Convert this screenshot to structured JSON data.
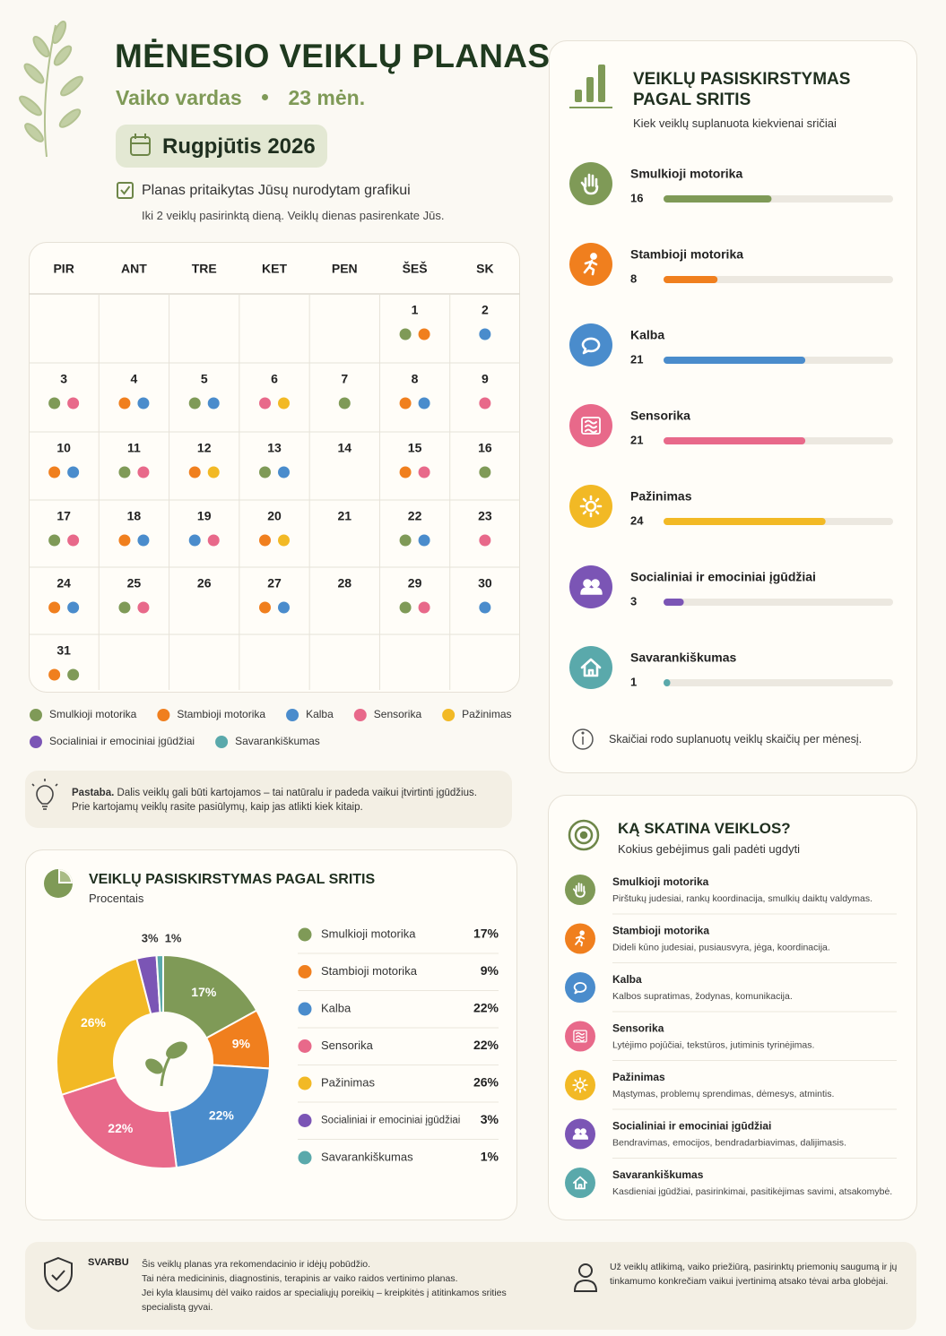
{
  "header": {
    "title": "MĖNESIO VEIKLŲ PLANAS",
    "child": "Vaiko vardas",
    "age": "23 mėn.",
    "month": "Rugpjūtis 2026",
    "schedule_note": "Planas pritaikytas Jūsų nurodytam grafikui",
    "schedule_detail": "Iki 2 veiklų pasirinktą dieną. Veiklų dienas pasirenkate Jūs."
  },
  "calendar": {
    "weekdays": [
      "PIR",
      "ANT",
      "TRE",
      "KET",
      "PEN",
      "ŠEŠ",
      "SK"
    ],
    "weeks": [
      [
        null,
        null,
        null,
        null,
        null,
        {
          "day": 1,
          "activities": [
            0,
            1
          ]
        },
        {
          "day": 2,
          "activities": [
            2
          ]
        }
      ],
      [
        {
          "day": 3,
          "activities": [
            0,
            3
          ]
        },
        {
          "day": 4,
          "activities": [
            1,
            2
          ]
        },
        {
          "day": 5,
          "activities": [
            0,
            2
          ]
        },
        {
          "day": 6,
          "activities": [
            3,
            4
          ]
        },
        {
          "day": 7,
          "activities": [
            0
          ]
        },
        {
          "day": 8,
          "activities": [
            1,
            2
          ]
        },
        {
          "day": 9,
          "activities": [
            3
          ]
        }
      ],
      [
        {
          "day": 10,
          "activities": [
            1,
            2
          ]
        },
        {
          "day": 11,
          "activities": [
            0,
            3
          ]
        },
        {
          "day": 12,
          "activities": [
            1,
            4
          ]
        },
        {
          "day": 13,
          "activities": [
            0,
            2
          ]
        },
        {
          "day": 14,
          "activities": []
        },
        {
          "day": 15,
          "activities": [
            1,
            3
          ]
        },
        {
          "day": 16,
          "activities": [
            0
          ]
        }
      ],
      [
        {
          "day": 17,
          "activities": [
            0,
            3
          ]
        },
        {
          "day": 18,
          "activities": [
            1,
            2
          ]
        },
        {
          "day": 19,
          "activities": [
            2,
            3
          ]
        },
        {
          "day": 20,
          "activities": [
            1,
            4
          ]
        },
        {
          "day": 21,
          "activities": []
        },
        {
          "day": 22,
          "activities": [
            0,
            2
          ]
        },
        {
          "day": 23,
          "activities": [
            3
          ]
        }
      ],
      [
        {
          "day": 24,
          "activities": [
            1,
            2
          ]
        },
        {
          "day": 25,
          "activities": [
            0,
            3
          ]
        },
        {
          "day": 26,
          "activities": []
        },
        {
          "day": 27,
          "activities": [
            1,
            2
          ]
        },
        {
          "day": 28,
          "activities": []
        },
        {
          "day": 29,
          "activities": [
            0,
            3
          ]
        },
        {
          "day": 30,
          "activities": [
            2
          ]
        }
      ],
      [
        {
          "day": 31,
          "activities": [
            1,
            0
          ]
        },
        null,
        null,
        null,
        null,
        null,
        null
      ]
    ]
  },
  "note": {
    "label": "Pastaba.",
    "text": "Dalis veiklų gali būti kartojamos – tai natūralu ir padeda vaikui įtvirtinti įgūdžius. Prie kartojamų veiklų rasite pasiūlymų, kaip jas atlikti kiek kitaip."
  },
  "chart_data": [
    {
      "type": "bar",
      "title": "VEIKLŲ PASISKIRSTYMAS PAGAL SRITIS",
      "subtitle": "Kiek veiklų suplanuota kiekvienai sričiai",
      "categories": [
        "Smulkioji motorika",
        "Stambioji motorika",
        "Kalba",
        "Sensorika",
        "Pažinimas",
        "Socialiniai ir emociniai įgūdžiai",
        "Savarankiškumas"
      ],
      "values": [
        16,
        8,
        21,
        21,
        24,
        3,
        1
      ],
      "colors": [
        "#7f9a57",
        "#f07f1e",
        "#4a8ccc",
        "#e8698a",
        "#f2b925",
        "#7b55b5",
        "#5aa9ab"
      ],
      "xlim": [
        0,
        34
      ],
      "footnote": "Skaičiai rodo suplanuotų veiklų skaičių per mėnesį."
    },
    {
      "type": "pie",
      "donut": true,
      "title": "VEIKLŲ PASISKIRSTYMAS PAGAL SRITIS",
      "subtitle": "Procentais",
      "categories": [
        "Smulkioji motorika",
        "Stambioji motorika",
        "Kalba",
        "Sensorika",
        "Pažinimas",
        "Socialiniai ir emociniai įgūdžiai",
        "Savarankiškumas"
      ],
      "values": [
        17,
        9,
        22,
        22,
        26,
        3,
        1
      ],
      "value_labels": [
        "17%",
        "9%",
        "22%",
        "22%",
        "26%",
        "3%",
        "1%"
      ],
      "colors": [
        "#7f9a57",
        "#f07f1e",
        "#4a8ccc",
        "#e8698a",
        "#f2b925",
        "#7b55b5",
        "#5aa9ab"
      ]
    }
  ],
  "skills": {
    "title": "KĄ SKATINA VEIKLOS?",
    "subtitle": "Kokius gebėjimus gali padėti ugdyti",
    "descriptions": [
      "Pirštukų judesiai, rankų koordinacija, smulkių daiktų valdymas.",
      "Dideli kūno judesiai, pusiausvyra, jėga, koordinacija.",
      "Kalbos supratimas, žodynas, komunikacija.",
      "Lytėjimo pojūčiai, tekstūros, jutiminis tyrinėjimas.",
      "Mąstymas, problemų sprendimas, dėmesys, atmintis.",
      "Bendravimas, emocijos, bendradarbiavimas, dalijimasis.",
      "Kasdieniai įgūdžiai, pasirinkimai, pasitikėjimas savimi, atsakomybė."
    ]
  },
  "footer": {
    "label": "SVARBU",
    "lines": [
      "Šis veiklų planas yra rekomendacinio ir idėjų pobūdžio.",
      "Tai nėra medicininis, diagnostinis, terapinis ar vaiko raidos vertinimo planas.",
      "Jei kyla klausimų dėl vaiko raidos ar specialiųjų poreikių – kreipkitės į atitinkamos srities specialistą gyvai."
    ],
    "responsibility": "Už veiklų atlikimą, vaiko priežiūrą, pasirinktų priemonių saugumą ir jų tinkamumo konkrečiam vaikui įvertinimą atsako tėvai arba globėjai."
  }
}
